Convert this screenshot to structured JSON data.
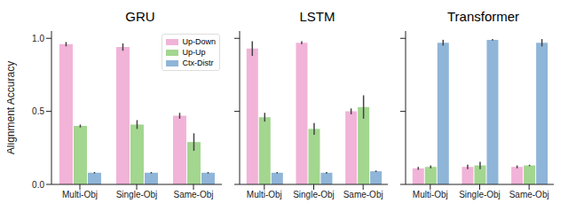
{
  "chart_data": [
    {
      "type": "bar",
      "title": "GRU",
      "y_label": "Alignment Accuracy",
      "categories": [
        "Multi-Obj",
        "Single-Obj",
        "Same-Obj"
      ],
      "series": [
        {
          "name": "Up-Down",
          "color": "#f1b3d8",
          "values": [
            0.96,
            0.94,
            0.47
          ],
          "errors": [
            0.015,
            0.025,
            0.02
          ]
        },
        {
          "name": "Up-Up",
          "color": "#a3d68f",
          "values": [
            0.4,
            0.41,
            0.29
          ],
          "errors": [
            0.01,
            0.03,
            0.06
          ]
        },
        {
          "name": "Ctx-Distr",
          "color": "#8fb5d8",
          "values": [
            0.08,
            0.08,
            0.08
          ],
          "errors": [
            0.005,
            0.005,
            0.005
          ]
        }
      ],
      "ylim": [
        0,
        1.05
      ],
      "yticks": [
        {
          "value": 0,
          "label": "0.0"
        },
        {
          "value": 0.5,
          "label": "0.5"
        },
        {
          "value": 1,
          "label": "1.0"
        }
      ],
      "legend": "upper right"
    },
    {
      "type": "bar",
      "title": "LSTM",
      "categories": [
        "Multi-Obj",
        "Single-Obj",
        "Same-Obj"
      ],
      "series": [
        {
          "name": "Up-Down",
          "color": "#f1b3d8",
          "values": [
            0.93,
            0.97,
            0.5
          ],
          "errors": [
            0.05,
            0.01,
            0.02
          ]
        },
        {
          "name": "Up-Up",
          "color": "#a3d68f",
          "values": [
            0.46,
            0.38,
            0.53
          ],
          "errors": [
            0.03,
            0.04,
            0.08
          ]
        },
        {
          "name": "Ctx-Distr",
          "color": "#8fb5d8",
          "values": [
            0.08,
            0.08,
            0.09
          ],
          "errors": [
            0.005,
            0.005,
            0.005
          ]
        }
      ],
      "ylim": [
        0,
        1.05
      ],
      "yticks": [
        {
          "value": 0,
          "label": "0.0"
        },
        {
          "value": 0.5,
          "label": "0.5"
        },
        {
          "value": 1,
          "label": "1.0"
        }
      ],
      "tick_labels": "x"
    },
    {
      "type": "bar",
      "title": "Transformer",
      "categories": [
        "Multi-Obj",
        "Single-Obj",
        "Same-Obj"
      ],
      "series": [
        {
          "name": "Up-Down",
          "color": "#f1b3d8",
          "values": [
            0.11,
            0.12,
            0.12
          ],
          "errors": [
            0.01,
            0.015,
            0.01
          ]
        },
        {
          "name": "Up-Up",
          "color": "#a3d68f",
          "values": [
            0.12,
            0.13,
            0.13
          ],
          "errors": [
            0.01,
            0.025,
            0.005
          ]
        },
        {
          "name": "Ctx-Distr",
          "color": "#8fb5d8",
          "values": [
            0.97,
            0.99,
            0.97
          ],
          "errors": [
            0.02,
            0.005,
            0.025
          ]
        }
      ],
      "ylim": [
        0,
        1.05
      ],
      "yticks": [
        {
          "value": 0,
          "label": "0.0"
        },
        {
          "value": 0.5,
          "label": "0.5"
        },
        {
          "value": 1,
          "label": "1.0"
        }
      ],
      "tick_labels": "x"
    }
  ]
}
